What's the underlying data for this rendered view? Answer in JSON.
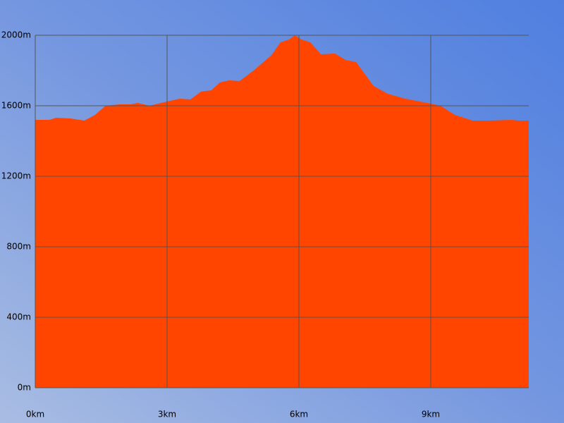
{
  "chart_data": {
    "type": "area",
    "color": "#ff4500",
    "grid": true,
    "x": [
      0,
      0.32,
      0.48,
      0.8,
      1.12,
      1.36,
      1.6,
      1.93,
      2.17,
      2.33,
      2.6,
      3.0,
      3.29,
      3.53,
      3.77,
      4.01,
      4.2,
      4.41,
      4.65,
      4.97,
      5.38,
      5.58,
      5.78,
      5.9,
      6.06,
      6.26,
      6.5,
      6.82,
      7.06,
      7.3,
      7.7,
      8.02,
      8.42,
      9.0,
      9.22,
      9.55,
      9.95,
      10.35,
      10.83,
      10.99,
      11.23
    ],
    "values": [
      1520,
      1520,
      1532,
      1528,
      1516,
      1548,
      1600,
      1608,
      1608,
      1616,
      1600,
      1624,
      1640,
      1636,
      1680,
      1688,
      1732,
      1744,
      1740,
      1800,
      1888,
      1960,
      1976,
      2000,
      1976,
      1960,
      1892,
      1896,
      1860,
      1848,
      1712,
      1668,
      1640,
      1612,
      1600,
      1548,
      1516,
      1516,
      1520,
      1516,
      1516
    ],
    "xlim": [
      0,
      11.23
    ],
    "ylim": [
      0,
      2000
    ],
    "xticks": [
      {
        "value": 0,
        "label": "0km"
      },
      {
        "value": 3,
        "label": "3km"
      },
      {
        "value": 6,
        "label": "6km"
      },
      {
        "value": 9,
        "label": "9km"
      }
    ],
    "yticks": [
      {
        "value": 0,
        "label": "0m"
      },
      {
        "value": 400,
        "label": "400m"
      },
      {
        "value": 800,
        "label": "800m"
      },
      {
        "value": 1200,
        "label": "1200m"
      },
      {
        "value": 1600,
        "label": "1600m"
      },
      {
        "value": 2000,
        "label": "2000m"
      }
    ]
  }
}
